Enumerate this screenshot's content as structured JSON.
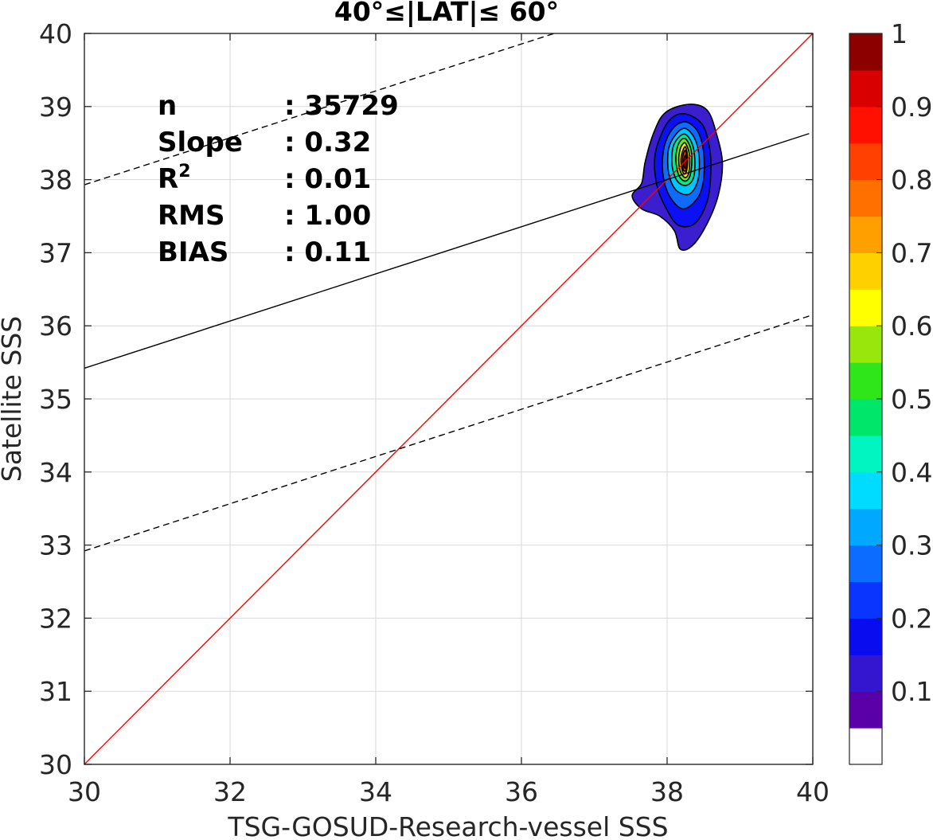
{
  "chart_data": {
    "type": "heatmap",
    "title": "40°≤|LAT|≤ 60°",
    "xlabel": "TSG-GOSUD-Research-vessel SSS",
    "ylabel": "Satellite SSS",
    "xlim": [
      30,
      40
    ],
    "ylim": [
      30,
      40
    ],
    "xticks": [
      30,
      32,
      34,
      36,
      38,
      40
    ],
    "yticks": [
      30,
      31,
      32,
      33,
      34,
      35,
      36,
      37,
      38,
      39,
      40
    ],
    "grid": true,
    "stats": [
      {
        "label": "n",
        "value": ": 35729"
      },
      {
        "label": "Slope",
        "value": ": 0.32"
      },
      {
        "label": "R",
        "sup": "2",
        "value": ": 0.01"
      },
      {
        "label": "RMS",
        "value": ": 1.00"
      },
      {
        "label": "BIAS",
        "value": ": 0.11"
      }
    ],
    "lines": {
      "one_to_one": {
        "x": [
          30,
          40
        ],
        "y": [
          30,
          40
        ],
        "color": "#ff0000"
      },
      "fit": {
        "x": [
          30,
          39.95
        ],
        "y": [
          35.42,
          38.63
        ],
        "color": "#000000"
      },
      "upper_bound": {
        "x": [
          30,
          36.45
        ],
        "y": [
          37.93,
          40
        ],
        "color": "#000000",
        "dash": true
      },
      "lower_bound": {
        "x": [
          30,
          40
        ],
        "y": [
          32.92,
          36.15
        ],
        "color": "#000000",
        "dash": true
      }
    },
    "density": {
      "center": [
        38.24,
        38.22
      ],
      "peak_value": 1.0,
      "levels": [
        {
          "level": 0.05,
          "color": "#3b1fcf",
          "points": [
            [
              38.3,
              39.03
            ],
            [
              38.55,
              38.95
            ],
            [
              38.68,
              38.62
            ],
            [
              38.76,
              38.22
            ],
            [
              38.7,
              37.78
            ],
            [
              38.55,
              37.4
            ],
            [
              38.35,
              37.1
            ],
            [
              38.18,
              37.05
            ],
            [
              38.1,
              37.3
            ],
            [
              37.9,
              37.5
            ],
            [
              37.65,
              37.6
            ],
            [
              37.52,
              37.78
            ],
            [
              37.65,
              37.95
            ],
            [
              37.7,
              38.25
            ],
            [
              37.82,
              38.65
            ],
            [
              37.98,
              38.92
            ]
          ]
        },
        {
          "level": 0.15,
          "color": "#0c10f5",
          "points": [
            [
              38.25,
              38.9
            ],
            [
              38.48,
              38.76
            ],
            [
              38.58,
              38.45
            ],
            [
              38.6,
              38.1
            ],
            [
              38.55,
              37.7
            ],
            [
              38.38,
              37.4
            ],
            [
              38.15,
              37.38
            ],
            [
              37.98,
              37.62
            ],
            [
              37.86,
              37.92
            ],
            [
              37.83,
              38.3
            ],
            [
              37.92,
              38.62
            ],
            [
              38.06,
              38.84
            ]
          ]
        },
        {
          "level": 0.25,
          "color": "#0d6cff",
          "points": [
            [
              38.25,
              38.79
            ],
            [
              38.42,
              38.66
            ],
            [
              38.5,
              38.38
            ],
            [
              38.5,
              38.0
            ],
            [
              38.42,
              37.75
            ],
            [
              38.22,
              37.6
            ],
            [
              38.03,
              37.78
            ],
            [
              37.94,
              38.1
            ],
            [
              37.96,
              38.45
            ],
            [
              38.08,
              38.7
            ]
          ]
        },
        {
          "level": 0.35,
          "color": "#00c6ff",
          "points": [
            [
              38.25,
              38.7
            ],
            [
              38.38,
              38.56
            ],
            [
              38.44,
              38.3
            ],
            [
              38.42,
              37.98
            ],
            [
              38.3,
              37.8
            ],
            [
              38.12,
              37.86
            ],
            [
              38.02,
              38.1
            ],
            [
              38.02,
              38.42
            ],
            [
              38.12,
              38.62
            ]
          ]
        },
        {
          "level": 0.45,
          "color": "#00e890",
          "points": [
            [
              38.25,
              38.62
            ],
            [
              38.34,
              38.5
            ],
            [
              38.38,
              38.28
            ],
            [
              38.36,
              38.02
            ],
            [
              38.26,
              37.92
            ],
            [
              38.14,
              37.98
            ],
            [
              38.07,
              38.18
            ],
            [
              38.08,
              38.44
            ],
            [
              38.16,
              38.58
            ]
          ]
        },
        {
          "level": 0.55,
          "color": "#6ee61c",
          "points": [
            [
              38.25,
              38.56
            ],
            [
              38.32,
              38.44
            ],
            [
              38.34,
              38.25
            ],
            [
              38.31,
              38.04
            ],
            [
              38.24,
              37.98
            ],
            [
              38.16,
              38.06
            ],
            [
              38.12,
              38.26
            ],
            [
              38.14,
              38.44
            ],
            [
              38.19,
              38.54
            ]
          ]
        },
        {
          "level": 0.65,
          "color": "#ffe600",
          "points": [
            [
              38.25,
              38.5
            ],
            [
              38.3,
              38.38
            ],
            [
              38.31,
              38.22
            ],
            [
              38.29,
              38.07
            ],
            [
              38.24,
              38.03
            ],
            [
              38.18,
              38.12
            ],
            [
              38.16,
              38.28
            ],
            [
              38.18,
              38.42
            ],
            [
              38.21,
              38.48
            ]
          ]
        },
        {
          "level": 0.75,
          "color": "#ff9a00",
          "points": [
            [
              38.25,
              38.45
            ],
            [
              38.28,
              38.33
            ],
            [
              38.28,
              38.2
            ],
            [
              38.26,
              38.1
            ],
            [
              38.23,
              38.08
            ],
            [
              38.2,
              38.16
            ],
            [
              38.19,
              38.28
            ],
            [
              38.21,
              38.38
            ]
          ]
        },
        {
          "level": 0.85,
          "color": "#ff3a00",
          "points": [
            [
              38.25,
              38.4
            ],
            [
              38.27,
              38.29
            ],
            [
              38.27,
              38.19
            ],
            [
              38.25,
              38.12
            ],
            [
              38.22,
              38.14
            ],
            [
              38.21,
              38.24
            ],
            [
              38.22,
              38.34
            ]
          ]
        },
        {
          "level": 0.95,
          "color": "#b20000",
          "points": [
            [
              38.25,
              38.33
            ],
            [
              38.26,
              38.24
            ],
            [
              38.25,
              38.16
            ],
            [
              38.23,
              38.18
            ],
            [
              38.23,
              38.27
            ]
          ]
        }
      ]
    },
    "colorbar": {
      "ticks": [
        "1",
        "0.9",
        "0.8",
        "0.7",
        "0.6",
        "0.5",
        "0.4",
        "0.3",
        "0.2",
        "0.1"
      ],
      "colors": [
        "#ffffff",
        "#5a00a8",
        "#3516cf",
        "#0a0cf0",
        "#0a34ff",
        "#0b6cff",
        "#00a8ff",
        "#00dcff",
        "#00f5c0",
        "#00e66b",
        "#2ee619",
        "#98e60c",
        "#ffff00",
        "#ffd000",
        "#ffa000",
        "#ff7000",
        "#ff4000",
        "#ff1000",
        "#d80000",
        "#8c0000"
      ]
    }
  }
}
